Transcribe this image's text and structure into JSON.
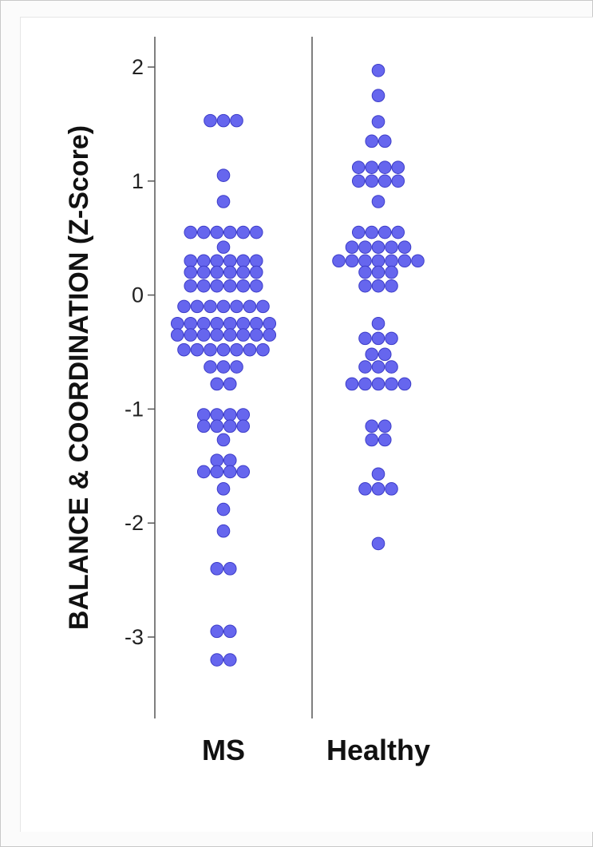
{
  "chart_data": {
    "type": "scatter",
    "subtype": "dot-plot",
    "title": "",
    "xlabel": "",
    "ylabel": "BALANCE & COORDINATION (Z-Score)",
    "ylim": [
      -3.6,
      2.25
    ],
    "yticks": [
      2,
      1,
      0,
      -1,
      -2,
      -3
    ],
    "ytick_labels": [
      "2",
      "1",
      "0",
      "-1",
      "-2",
      "-3"
    ],
    "grid": false,
    "legend": "none",
    "categories": [
      "MS",
      "Healthy"
    ],
    "marker_color": "#6666ee",
    "marker_edge_color": "#3d3dc8",
    "series": [
      {
        "name": "MS",
        "values": [
          1.53,
          1.53,
          1.53,
          1.05,
          0.82,
          0.55,
          0.55,
          0.55,
          0.55,
          0.55,
          0.55,
          0.42,
          0.3,
          0.3,
          0.3,
          0.3,
          0.3,
          0.3,
          0.2,
          0.2,
          0.2,
          0.2,
          0.2,
          0.2,
          0.08,
          0.08,
          0.08,
          0.08,
          0.08,
          0.08,
          -0.1,
          -0.1,
          -0.1,
          -0.1,
          -0.1,
          -0.1,
          -0.1,
          -0.25,
          -0.25,
          -0.25,
          -0.25,
          -0.25,
          -0.25,
          -0.25,
          -0.25,
          -0.35,
          -0.35,
          -0.35,
          -0.35,
          -0.35,
          -0.35,
          -0.35,
          -0.35,
          -0.48,
          -0.48,
          -0.48,
          -0.48,
          -0.48,
          -0.48,
          -0.48,
          -0.63,
          -0.63,
          -0.63,
          -0.78,
          -0.78,
          -1.05,
          -1.05,
          -1.05,
          -1.05,
          -1.15,
          -1.15,
          -1.15,
          -1.15,
          -1.27,
          -1.45,
          -1.45,
          -1.55,
          -1.55,
          -1.55,
          -1.55,
          -1.7,
          -1.88,
          -2.07,
          -2.4,
          -2.4,
          -2.95,
          -2.95,
          -3.2,
          -3.2
        ]
      },
      {
        "name": "Healthy",
        "values": [
          1.97,
          1.75,
          1.52,
          1.35,
          1.35,
          1.12,
          1.12,
          1.12,
          1.12,
          1.0,
          1.0,
          1.0,
          1.0,
          0.82,
          0.55,
          0.55,
          0.55,
          0.55,
          0.42,
          0.42,
          0.42,
          0.42,
          0.42,
          0.3,
          0.3,
          0.3,
          0.3,
          0.3,
          0.3,
          0.3,
          0.2,
          0.2,
          0.2,
          0.08,
          0.08,
          0.08,
          -0.25,
          -0.38,
          -0.38,
          -0.38,
          -0.52,
          -0.52,
          -0.63,
          -0.63,
          -0.63,
          -0.78,
          -0.78,
          -0.78,
          -0.78,
          -0.78,
          -1.15,
          -1.15,
          -1.27,
          -1.27,
          -1.57,
          -1.7,
          -1.7,
          -1.7,
          -2.18
        ]
      }
    ]
  }
}
